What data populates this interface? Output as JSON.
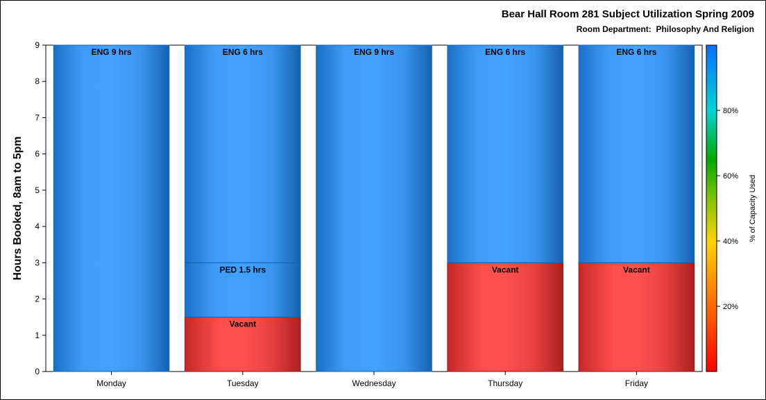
{
  "chart_data": {
    "type": "bar",
    "stacked": true,
    "title": "Bear Hall Room 281 Subject Utilization Spring 2009",
    "subtitle": "Room Department:  Philosophy And Religion",
    "xlabel": "",
    "ylabel": "Hours Booked, 8am to 5pm",
    "ylim": [
      0,
      9
    ],
    "yticks": [
      "0",
      "1",
      "2",
      "3",
      "4",
      "5",
      "6",
      "7",
      "8",
      "9"
    ],
    "categories": [
      "Monday",
      "Tuesday",
      "Wednesday",
      "Thursday",
      "Friday"
    ],
    "bars": [
      {
        "day": "Monday",
        "segments": [
          {
            "label": "ENG 9 hrs",
            "hours": 9,
            "capacity_pct": 98
          }
        ]
      },
      {
        "day": "Tuesday",
        "segments": [
          {
            "label": "Vacant",
            "hours": 1.5,
            "capacity_pct": 0
          },
          {
            "label": "PED 1.5 hrs",
            "hours": 1.5,
            "capacity_pct": 98
          },
          {
            "label": "ENG 6 hrs",
            "hours": 6,
            "capacity_pct": 98
          }
        ]
      },
      {
        "day": "Wednesday",
        "segments": [
          {
            "label": "ENG 9 hrs",
            "hours": 9,
            "capacity_pct": 98
          }
        ]
      },
      {
        "day": "Thursday",
        "segments": [
          {
            "label": "Vacant",
            "hours": 3,
            "capacity_pct": 0
          },
          {
            "label": "ENG 6 hrs",
            "hours": 6,
            "capacity_pct": 98
          }
        ]
      },
      {
        "day": "Friday",
        "segments": [
          {
            "label": "Vacant",
            "hours": 3,
            "capacity_pct": 0
          },
          {
            "label": "ENG 6 hrs",
            "hours": 6,
            "capacity_pct": 98
          }
        ]
      }
    ],
    "colorbar": {
      "label": "% of Capacity Used",
      "ticks": [
        "20%",
        "40%",
        "60%",
        "80%"
      ],
      "tick_values": [
        20,
        40,
        60,
        80
      ],
      "range": [
        0,
        100
      ]
    },
    "colors": {
      "used": "#3fa0ff",
      "vacant": "#ff4f4f"
    },
    "grid": false,
    "legend": "right colorbar"
  }
}
